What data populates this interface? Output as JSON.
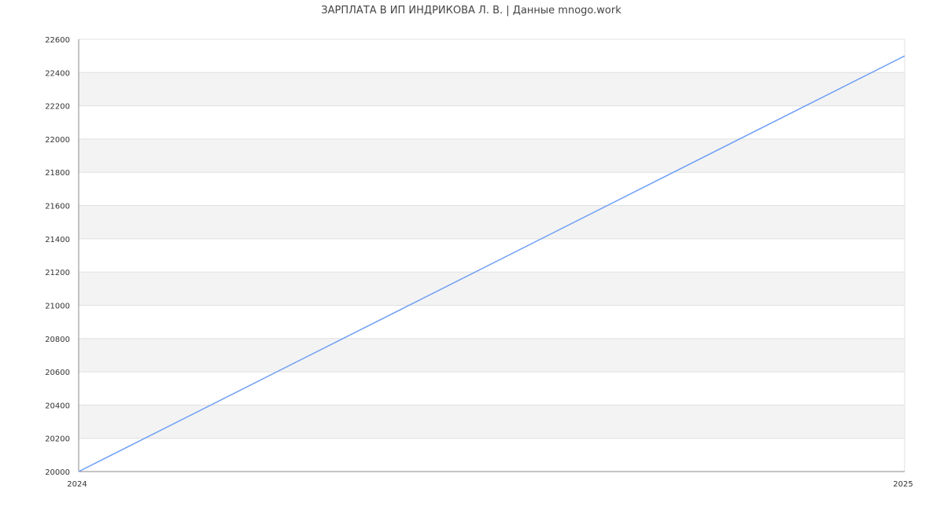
{
  "chart_data": {
    "type": "line",
    "title": "ЗАРПЛАТА В ИП ИНДРИКОВА Л. В. | Данные mnogo.work",
    "xlabel": "",
    "ylabel": "",
    "x": [
      "2024",
      "2025"
    ],
    "series": [
      {
        "values": [
          20000,
          22500
        ]
      }
    ],
    "xlim": [
      2024,
      2025
    ],
    "ylim": [
      20000,
      22600
    ],
    "yticks": [
      20000,
      20200,
      20400,
      20600,
      20800,
      21000,
      21200,
      21400,
      21600,
      21800,
      22000,
      22200,
      22400,
      22600
    ],
    "grid": true,
    "colors": {
      "line": "#6f9ff5",
      "band": "#f3f3f3",
      "grid": "#e0e0e0",
      "axis": "#888888",
      "text": "#333333"
    }
  }
}
